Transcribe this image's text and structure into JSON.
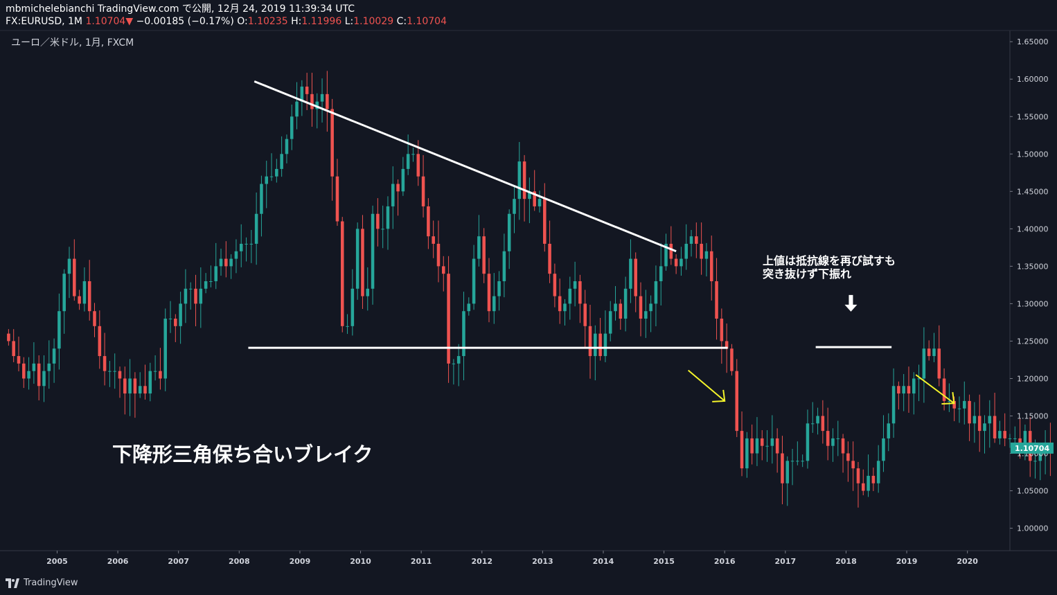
{
  "header": {
    "line1": "mbmichelebianchi TradingView.com で公開, 12月 24, 2019 11:39:34 UTC",
    "symbol": "FX:EURUSD, 1M",
    "last": "1.10704",
    "change": "−0.00185 (−0.17%)",
    "o_label": "O:",
    "o_val": "1.10235",
    "h_label": "H:",
    "h_val": "1.11996",
    "l_label": "L:",
    "l_val": "1.10029",
    "c_label": "C:",
    "c_val": "1.10704"
  },
  "footer": {
    "brand": "TradingView"
  },
  "colors": {
    "background": "#131722",
    "up": "#26a69a",
    "down": "#ef5350",
    "annotation_white": "#ffffff",
    "annotation_yellow": "#f5f52a",
    "price_label_bg": "#26a69a"
  },
  "chart_data": {
    "type": "candlestick",
    "title": "ユーロ／米ドル, 1月, FXCM",
    "x_ticks": [
      "2005",
      "2006",
      "2007",
      "2008",
      "2009",
      "2010",
      "2011",
      "2012",
      "2013",
      "2014",
      "2015",
      "2016",
      "2017",
      "2018",
      "2019",
      "2020"
    ],
    "y_ticks": [
      "1.00000",
      "1.05000",
      "1.10000",
      "1.15000",
      "1.20000",
      "1.25000",
      "1.30000",
      "1.35000",
      "1.40000",
      "1.45000",
      "1.50000",
      "1.55000",
      "1.60000",
      "1.65000"
    ],
    "ylim": [
      0.97,
      1.665
    ],
    "xlim": [
      2004.15,
      2020.7
    ],
    "last_price": "1.10704",
    "series_start": 2004.2,
    "closes": [
      1.25,
      1.23,
      1.22,
      1.2,
      1.21,
      1.22,
      1.19,
      1.21,
      1.22,
      1.24,
      1.29,
      1.34,
      1.36,
      1.31,
      1.3,
      1.33,
      1.29,
      1.27,
      1.23,
      1.21,
      1.21,
      1.21,
      1.2,
      1.18,
      1.2,
      1.18,
      1.19,
      1.18,
      1.21,
      1.21,
      1.2,
      1.28,
      1.28,
      1.27,
      1.3,
      1.32,
      1.32,
      1.3,
      1.32,
      1.33,
      1.33,
      1.35,
      1.36,
      1.35,
      1.36,
      1.37,
      1.38,
      1.38,
      1.38,
      1.42,
      1.46,
      1.47,
      1.47,
      1.48,
      1.5,
      1.52,
      1.55,
      1.57,
      1.59,
      1.58,
      1.56,
      1.57,
      1.58,
      1.56,
      1.47,
      1.41,
      1.27,
      1.27,
      1.32,
      1.4,
      1.31,
      1.32,
      1.42,
      1.4,
      1.4,
      1.43,
      1.46,
      1.45,
      1.48,
      1.5,
      1.5,
      1.47,
      1.43,
      1.39,
      1.38,
      1.35,
      1.34,
      1.22,
      1.22,
      1.23,
      1.29,
      1.3,
      1.36,
      1.39,
      1.34,
      1.29,
      1.31,
      1.33,
      1.37,
      1.42,
      1.44,
      1.49,
      1.44,
      1.45,
      1.43,
      1.44,
      1.38,
      1.34,
      1.31,
      1.29,
      1.3,
      1.32,
      1.33,
      1.3,
      1.27,
      1.23,
      1.26,
      1.23,
      1.26,
      1.29,
      1.3,
      1.28,
      1.32,
      1.36,
      1.31,
      1.28,
      1.29,
      1.3,
      1.33,
      1.35,
      1.38,
      1.36,
      1.35,
      1.36,
      1.38,
      1.39,
      1.38,
      1.36,
      1.37,
      1.33,
      1.28,
      1.25,
      1.24,
      1.21,
      1.13,
      1.08,
      1.12,
      1.1,
      1.12,
      1.11,
      1.11,
      1.12,
      1.1,
      1.06,
      1.09,
      1.09,
      1.09,
      1.09,
      1.14,
      1.14,
      1.15,
      1.13,
      1.11,
      1.12,
      1.12,
      1.1,
      1.09,
      1.08,
      1.06,
      1.05,
      1.07,
      1.06,
      1.09,
      1.12,
      1.14,
      1.19,
      1.18,
      1.19,
      1.18,
      1.2,
      1.2,
      1.24,
      1.23,
      1.24,
      1.2,
      1.17,
      1.17,
      1.16,
      1.16,
      1.17,
      1.14,
      1.15,
      1.13,
      1.14,
      1.15,
      1.12,
      1.13,
      1.12,
      1.12,
      1.12,
      1.11,
      1.13,
      1.09,
      1.09,
      1.1,
      1.11,
      1.1
    ]
  },
  "annotations": {
    "pattern_label": "下降形三角保ち合いブレイク",
    "note_line1": "上値は抵抗線を再び試すも",
    "note_line2": "突き抜けず下振れ"
  }
}
